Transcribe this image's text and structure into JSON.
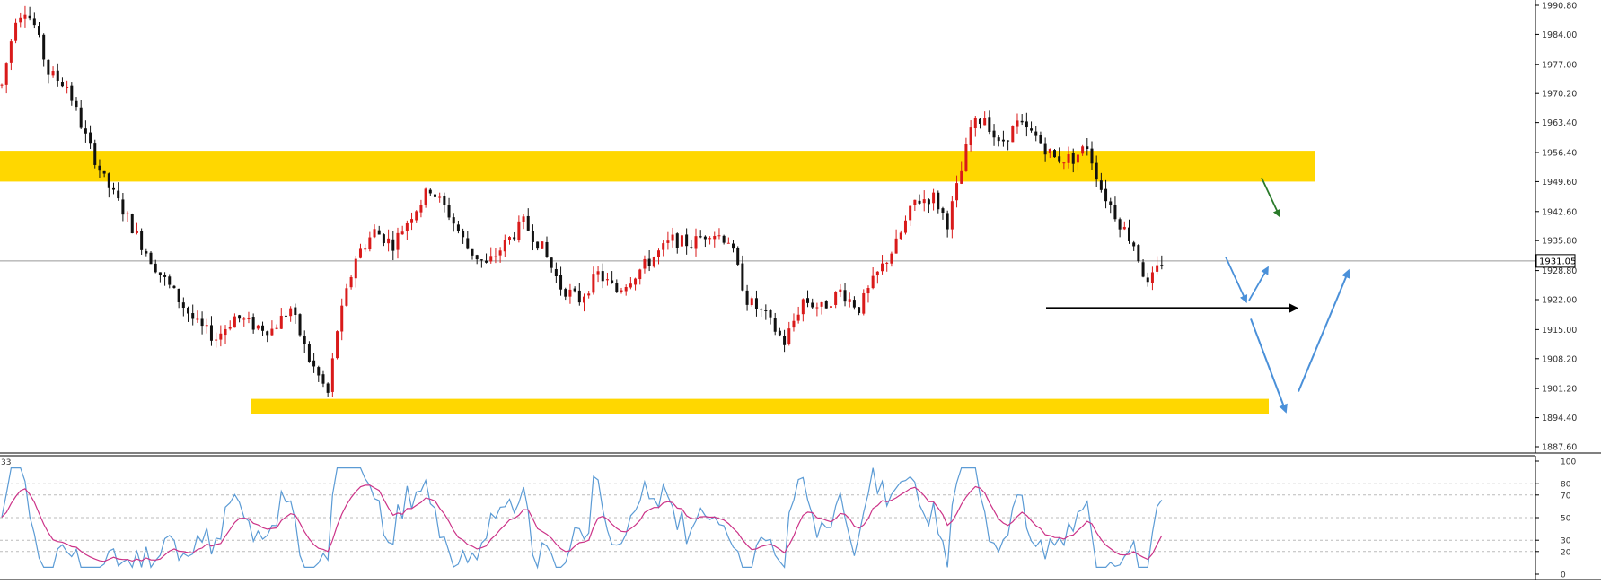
{
  "chart_data": [
    {
      "type": "candlestick",
      "price_axis": {
        "ticks": [
          "1990.80",
          "1984.00",
          "1977.00",
          "1970.20",
          "1963.40",
          "1956.40",
          "1949.60",
          "1942.60",
          "1935.80",
          "1928.80",
          "1922.00",
          "1915.00",
          "1908.20",
          "1901.20",
          "1894.40",
          "1887.60"
        ],
        "current_price_label": "1931.05",
        "current_price": 1931.05,
        "range": [
          1887.6,
          1990.8
        ]
      },
      "candle_count": 250,
      "approx_price_path": [
        [
          0,
          1972
        ],
        [
          3,
          1988
        ],
        [
          5,
          1990
        ],
        [
          7,
          1986
        ],
        [
          10,
          1975
        ],
        [
          14,
          1972
        ],
        [
          18,
          1960
        ],
        [
          22,
          1950
        ],
        [
          26,
          1943
        ],
        [
          30,
          1935
        ],
        [
          34,
          1928
        ],
        [
          38,
          1922
        ],
        [
          42,
          1916
        ],
        [
          46,
          1913
        ],
        [
          50,
          1918
        ],
        [
          54,
          1916
        ],
        [
          58,
          1915
        ],
        [
          62,
          1920
        ],
        [
          66,
          1908
        ],
        [
          70,
          1900
        ],
        [
          72,
          1915
        ],
        [
          76,
          1932
        ],
        [
          80,
          1938
        ],
        [
          84,
          1935
        ],
        [
          88,
          1942
        ],
        [
          92,
          1948
        ],
        [
          96,
          1942
        ],
        [
          100,
          1934
        ],
        [
          104,
          1930
        ],
        [
          108,
          1935
        ],
        [
          112,
          1940
        ],
        [
          116,
          1934
        ],
        [
          120,
          1925
        ],
        [
          124,
          1922
        ],
        [
          128,
          1928
        ],
        [
          132,
          1924
        ],
        [
          136,
          1928
        ],
        [
          140,
          1932
        ],
        [
          144,
          1936
        ],
        [
          148,
          1935
        ],
        [
          152,
          1938
        ],
        [
          156,
          1936
        ],
        [
          160,
          1922
        ],
        [
          164,
          1918
        ],
        [
          168,
          1912
        ],
        [
          172,
          1922
        ],
        [
          176,
          1920
        ],
        [
          180,
          1924
        ],
        [
          184,
          1920
        ],
        [
          188,
          1928
        ],
        [
          192,
          1935
        ],
        [
          196,
          1945
        ],
        [
          200,
          1946
        ],
        [
          203,
          1940
        ],
        [
          206,
          1952
        ],
        [
          208,
          1962
        ],
        [
          211,
          1965
        ],
        [
          214,
          1958
        ],
        [
          218,
          1963
        ],
        [
          222,
          1960
        ],
        [
          226,
          1955
        ],
        [
          230,
          1955
        ],
        [
          233,
          1958
        ],
        [
          236,
          1948
        ],
        [
          240,
          1940
        ],
        [
          243,
          1935
        ],
        [
          246,
          1925
        ],
        [
          249,
          1931
        ]
      ],
      "annotations": {
        "resistance_zone": [
          1949.6,
          1956.8
        ],
        "support_zone": [
          1895.3,
          1898.8
        ],
        "horizontal_line": 1920.0
      },
      "oscillator": {
        "label": "33",
        "levels": [
          "100",
          "80",
          "70",
          "50",
          "30",
          "20",
          "0"
        ],
        "range": [
          0,
          100
        ]
      }
    }
  ],
  "colors": {
    "background": "#ffffff",
    "bull_candle": "#d91a1a",
    "bear_candle": "#111111",
    "zone": "#ffd700",
    "axis_text": "#333333",
    "osc_fast": "#5b9bd5",
    "osc_slow": "#cc3388",
    "arrow_blue": "#4a90d9",
    "arrow_green": "#2a7a2a",
    "arrow_black": "#000000",
    "grid_dash": "#bbbbbb"
  }
}
